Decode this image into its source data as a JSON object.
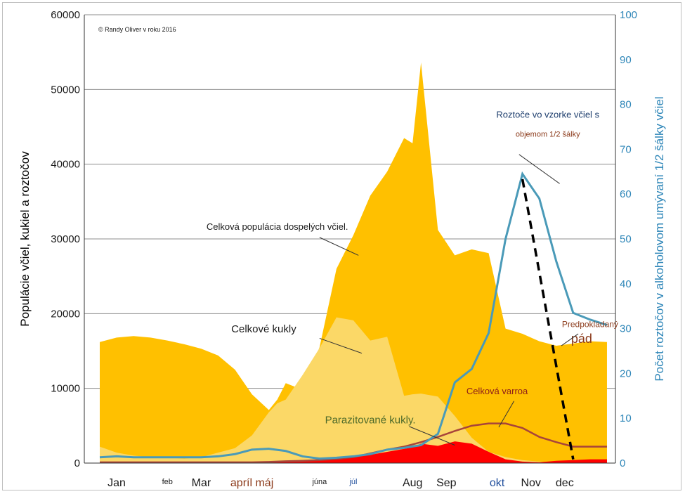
{
  "chart_data": {
    "type": "area",
    "copyright": "© Randy Oliver v roku 2016",
    "ylabel": "Populácie včiel, kukiel a roztočov",
    "ylabel_right": "Počet roztočov v alkoholovom umývaní 1/2 šálky včiel",
    "ylim": [
      0,
      60000
    ],
    "ylim_right": [
      0,
      100
    ],
    "yticks": [
      "0",
      "10000",
      "20000",
      "30000",
      "40000",
      "50000",
      "60000"
    ],
    "yticks_right": [
      "0",
      "10",
      "20",
      "30",
      "40",
      "50",
      "60",
      "70",
      "80",
      "90",
      "100"
    ],
    "month_labels": [
      {
        "label": "Jan",
        "x": 1.0,
        "size": "big",
        "color": "#1a1a1a"
      },
      {
        "label": "feb",
        "x": 4.0,
        "size": "small",
        "color": "#1a1a1a"
      },
      {
        "label": "Mar",
        "x": 6.0,
        "size": "big",
        "color": "#1a1a1a"
      },
      {
        "label": "apríl máj",
        "x": 9.0,
        "size": "big",
        "color": "#8b3a1a"
      },
      {
        "label": "júna",
        "x": 13.0,
        "size": "small",
        "color": "#1a1a1a"
      },
      {
        "label": "júl",
        "x": 15.0,
        "size": "small",
        "color": "#1f4e9c"
      },
      {
        "label": "Aug",
        "x": 18.5,
        "size": "big",
        "color": "#1a1a1a"
      },
      {
        "label": "Sep",
        "x": 20.5,
        "size": "big",
        "color": "#1a1a1a"
      },
      {
        "label": "okt",
        "x": 23.5,
        "size": "big",
        "color": "#1f4e9c"
      },
      {
        "label": "Nov",
        "x": 25.5,
        "size": "big",
        "color": "#1a1a1a"
      },
      {
        "label": "dec",
        "x": 27.5,
        "size": "big",
        "color": "#1a1a1a"
      }
    ],
    "x": [
      0,
      1,
      2,
      3,
      4,
      5,
      6,
      7,
      8,
      9,
      10,
      10.5,
      11,
      12,
      13,
      14,
      15,
      16,
      17,
      18,
      18.5,
      19,
      20,
      21,
      22,
      23,
      24,
      25,
      26,
      27,
      28,
      29,
      30
    ],
    "series": [
      {
        "name": "Celková populácia dospelých včiel",
        "color": "#ffc000",
        "values": [
          16200,
          16800,
          17000,
          16800,
          16400,
          15900,
          15300,
          14400,
          12500,
          9200,
          7100,
          8500,
          10700,
          9800,
          15500,
          26000,
          30500,
          35800,
          39000,
          43500,
          42800,
          53600,
          31200,
          27800,
          28600,
          28100,
          18000,
          17300,
          16300,
          15700,
          16000,
          16300,
          16200
        ]
      },
      {
        "name": "Celkové kukly",
        "color": "#fbd867",
        "values": [
          2200,
          1400,
          1000,
          800,
          700,
          600,
          800,
          1400,
          2000,
          3700,
          6800,
          8000,
          8500,
          11800,
          15400,
          19500,
          19100,
          16400,
          16900,
          9000,
          9200,
          9300,
          8900,
          6300,
          3400,
          1500,
          800,
          400,
          200,
          0,
          0,
          0,
          0
        ]
      },
      {
        "name": "Parazitované kukly",
        "color": "#ff0000",
        "values": [
          0,
          0,
          0,
          0,
          0,
          0,
          0,
          0,
          0,
          0,
          100,
          150,
          200,
          250,
          350,
          500,
          800,
          1100,
          1500,
          1900,
          2100,
          2600,
          2300,
          2900,
          2600,
          1500,
          500,
          200,
          100,
          300,
          400,
          500,
          500
        ]
      },
      {
        "name": "Celková varroa",
        "color": "#a8443a",
        "values": [
          100,
          100,
          100,
          100,
          100,
          100,
          100,
          100,
          100,
          100,
          150,
          200,
          250,
          300,
          400,
          550,
          800,
          1300,
          1800,
          2200,
          2500,
          2800,
          3500,
          4300,
          5000,
          5300,
          5300,
          4700,
          3500,
          2800,
          2200,
          2200,
          2200
        ]
      },
      {
        "name": "Roztoče vo vzorke včiel s objemom 1/2 šálky",
        "color": "#4a9ab8",
        "axis": "right",
        "x": [
          0,
          1,
          2,
          3,
          4,
          5,
          6,
          7,
          8,
          9,
          10,
          11,
          12,
          13,
          14,
          15,
          16,
          17,
          18,
          19,
          20,
          21,
          22,
          23,
          24,
          25,
          26,
          27,
          28,
          29,
          30
        ],
        "values": [
          1.3,
          1.5,
          1.3,
          1.3,
          1.3,
          1.3,
          1.3,
          1.5,
          2.0,
          3.0,
          3.2,
          2.7,
          1.5,
          1.0,
          1.2,
          1.5,
          2.0,
          3.0,
          3.4,
          4.0,
          6.5,
          18,
          21,
          29,
          50,
          64.5,
          59,
          45,
          33.5,
          32,
          30.8
        ]
      },
      {
        "name": "Predpokladaný pád",
        "color": "#000000",
        "style": "dashed",
        "x": [
          25.0,
          28.0
        ],
        "values": [
          38000,
          500
        ]
      }
    ],
    "annotations": [
      {
        "text": "Celková populácia dospelých včiel.",
        "x": 10.5,
        "y": 31200
      },
      {
        "text": "Celkové kukly",
        "x": 9.7,
        "y": 17500
      },
      {
        "text": "Parazitované kukly.",
        "x": 16.0,
        "y": 5300
      },
      {
        "text": "Celková varroa",
        "x": 23.5,
        "y": 9200
      },
      {
        "text": "Roztoče vo vzorke včiel s",
        "x": 26.5,
        "y": 46200
      },
      {
        "text": "objemom 1/2 šálky",
        "x": 26.5,
        "y": 43700
      },
      {
        "text": "Predpokladaný",
        "x": 29.0,
        "y": 18200
      },
      {
        "text": "pád",
        "x": 28.5,
        "y": 16100
      }
    ]
  }
}
